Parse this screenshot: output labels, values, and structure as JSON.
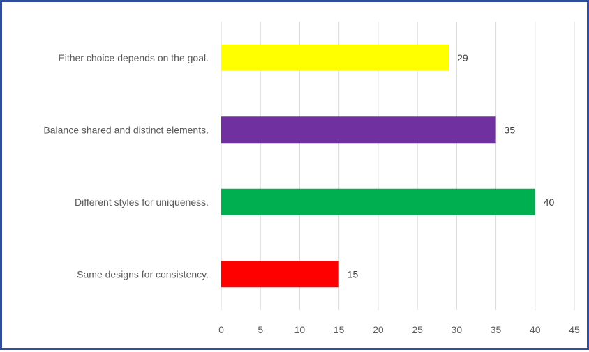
{
  "chart_data": {
    "type": "bar",
    "orientation": "horizontal",
    "categories": [
      "Same designs for consistency.",
      "Different styles for uniqueness.",
      "Balance shared and distinct elements.",
      "Either choice depends on the goal."
    ],
    "values": [
      15,
      40,
      35,
      29
    ],
    "colors": [
      "#ff0000",
      "#00b050",
      "#7030a0",
      "#ffff00"
    ],
    "xlim": [
      0,
      45
    ],
    "xticks": [
      "0",
      "5",
      "10",
      "15",
      "20",
      "25",
      "30",
      "35",
      "40",
      "45"
    ],
    "grid": "vertical",
    "data_labels": [
      "15",
      "40",
      "35",
      "29"
    ],
    "legend": "none",
    "border_color": "#2f4f9e"
  }
}
